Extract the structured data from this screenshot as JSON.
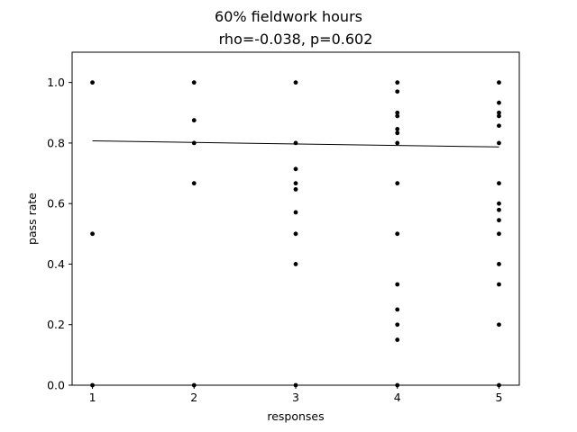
{
  "chart_data": {
    "type": "scatter",
    "title": "60% fieldwork hours",
    "subtitle": "rho=-0.038, p=0.602",
    "xlabel": "responses",
    "ylabel": "pass rate",
    "xlim": [
      0.8,
      5.2
    ],
    "ylim": [
      0.0,
      1.1
    ],
    "xticks": [
      "1",
      "2",
      "3",
      "4",
      "5"
    ],
    "yticks": [
      "0.0",
      "0.2",
      "0.4",
      "0.6",
      "0.8",
      "1.0"
    ],
    "grid": false,
    "point_color": "#000000",
    "trend_line": {
      "x": [
        1,
        5
      ],
      "y": [
        0.807,
        0.787
      ],
      "color": "#000000"
    },
    "points": [
      [
        1,
        1.0
      ],
      [
        1,
        0.5
      ],
      [
        1,
        0.0
      ],
      [
        2,
        1.0
      ],
      [
        2,
        0.875
      ],
      [
        2,
        0.8
      ],
      [
        2,
        0.667
      ],
      [
        2,
        0.0
      ],
      [
        3,
        1.0
      ],
      [
        3,
        0.8
      ],
      [
        3,
        0.714
      ],
      [
        3,
        0.667
      ],
      [
        3,
        0.647
      ],
      [
        3,
        0.571
      ],
      [
        3,
        0.5
      ],
      [
        3,
        0.4
      ],
      [
        3,
        0.0
      ],
      [
        4,
        1.0
      ],
      [
        4,
        0.97
      ],
      [
        4,
        0.9
      ],
      [
        4,
        0.889
      ],
      [
        4,
        0.846
      ],
      [
        4,
        0.833
      ],
      [
        4,
        0.8
      ],
      [
        4,
        0.667
      ],
      [
        4,
        0.5
      ],
      [
        4,
        0.333
      ],
      [
        4,
        0.25
      ],
      [
        4,
        0.2
      ],
      [
        4,
        0.15
      ],
      [
        4,
        0.0
      ],
      [
        5,
        1.0
      ],
      [
        5,
        0.933
      ],
      [
        5,
        0.9
      ],
      [
        5,
        0.889
      ],
      [
        5,
        0.857
      ],
      [
        5,
        0.8
      ],
      [
        5,
        0.667
      ],
      [
        5,
        0.6
      ],
      [
        5,
        0.579
      ],
      [
        5,
        0.545
      ],
      [
        5,
        0.5
      ],
      [
        5,
        0.4
      ],
      [
        5,
        0.333
      ],
      [
        5,
        0.2
      ],
      [
        5,
        0.0
      ]
    ]
  }
}
